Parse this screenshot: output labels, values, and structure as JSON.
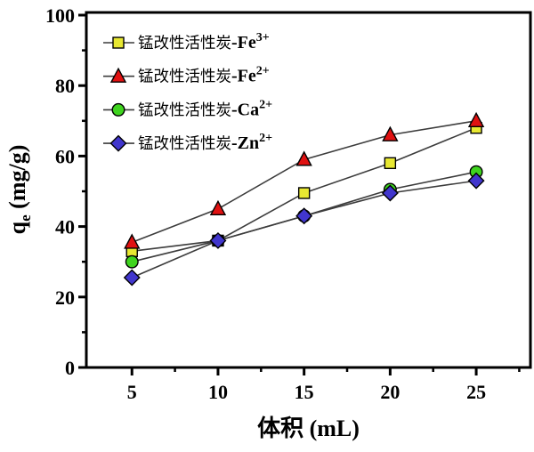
{
  "figure": {
    "background": "#ffffff",
    "axis_color": "#000000"
  },
  "chart_data": {
    "type": "line",
    "title": "",
    "xlabel": "体积  (mL)",
    "ylabel": "qe (mg/g)",
    "ylabel_parts": {
      "pre": "q",
      "sub": "e",
      "post": " (mg/g)"
    },
    "x": [
      5,
      10,
      15,
      20,
      25
    ],
    "xlim": [
      2.35,
      28.15
    ],
    "ylim": [
      0,
      100
    ],
    "x_major_ticks": [
      5,
      10,
      15,
      20,
      25
    ],
    "x_minor_ticks": [
      7.5,
      12.5,
      17.5,
      22.5,
      27.5
    ],
    "y_major_ticks": [
      0,
      20,
      40,
      60,
      80,
      100
    ],
    "y_minor_ticks": [
      10,
      30,
      50,
      70,
      90
    ],
    "grid": false,
    "legend_position": "top-left-inside",
    "line_color": "#3c3c3c",
    "marker_edge_color": "#000000",
    "series": [
      {
        "name": "锰改性活性炭-Fe3+",
        "legend_cn": "锰改性活性炭",
        "legend_symbol": "-Fe",
        "legend_sup": "3+",
        "marker": "square",
        "color": "#e8e832",
        "values": [
          33,
          36,
          49.5,
          58,
          68
        ]
      },
      {
        "name": "锰改性活性炭-Fe2+",
        "legend_cn": "锰改性活性炭",
        "legend_symbol": "-Fe",
        "legend_sup": "2+",
        "marker": "triangle",
        "color": "#e01111",
        "values": [
          35.5,
          45,
          59,
          66,
          70
        ]
      },
      {
        "name": "锰改性活性炭-Ca2+",
        "legend_cn": "锰改性活性炭",
        "legend_symbol": "-Ca",
        "legend_sup": "2+",
        "marker": "circle",
        "color": "#3fd41f",
        "values": [
          30,
          36,
          43,
          50.5,
          55.5
        ]
      },
      {
        "name": "锰改性活性炭-Zn2+",
        "legend_cn": "锰改性活性炭",
        "legend_symbol": "-Zn",
        "legend_sup": "2+",
        "marker": "diamond",
        "color": "#4136cd",
        "values": [
          25.5,
          36,
          43,
          49.5,
          53
        ]
      }
    ]
  }
}
